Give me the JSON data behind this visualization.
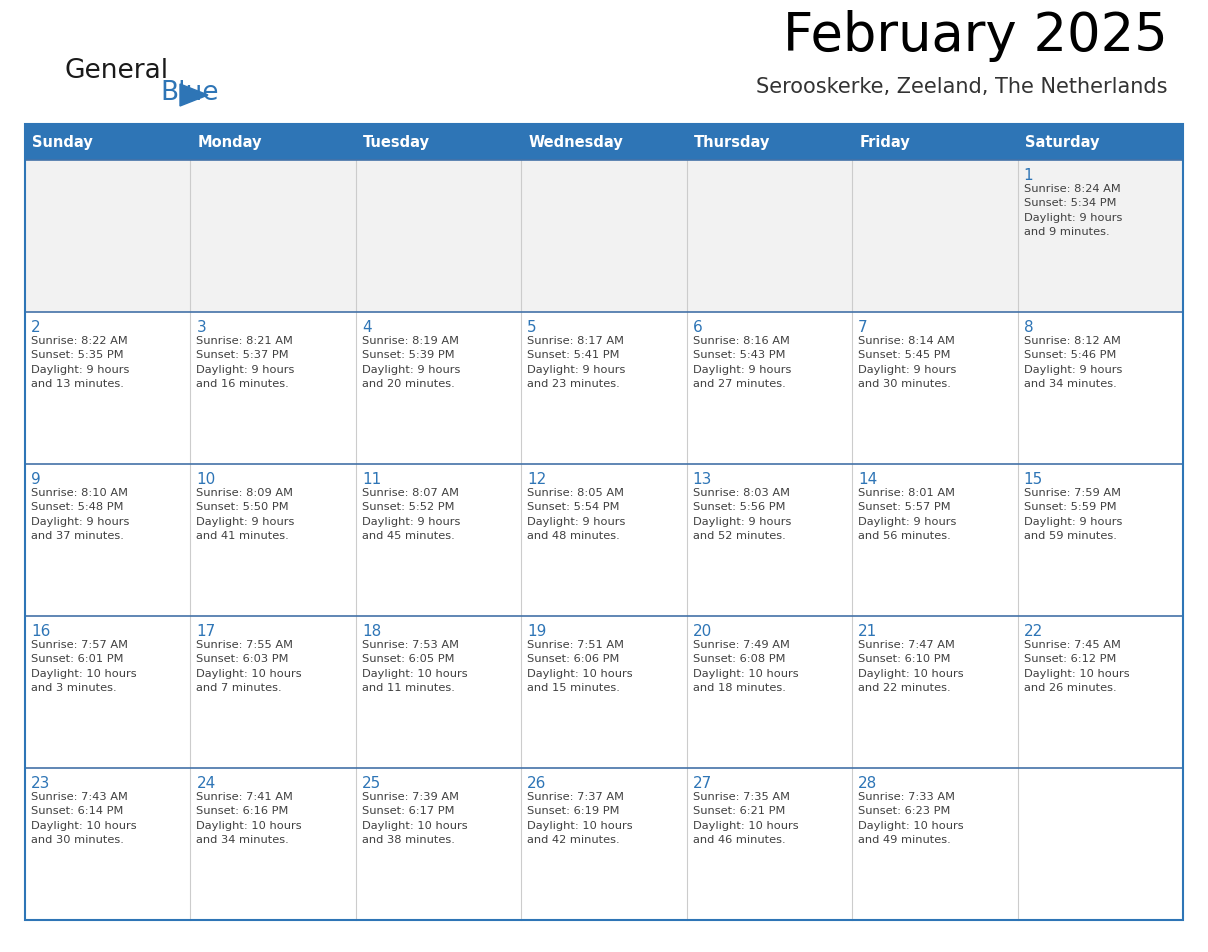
{
  "title": "February 2025",
  "subtitle": "Serooskerke, Zeeland, The Netherlands",
  "header_bg": "#2E75B6",
  "header_text_color": "#FFFFFF",
  "cell_bg_white": "#FFFFFF",
  "cell_bg_gray": "#F2F2F2",
  "border_color": "#2E75B6",
  "row_line_color": "#4472A8",
  "day_headers": [
    "Sunday",
    "Monday",
    "Tuesday",
    "Wednesday",
    "Thursday",
    "Friday",
    "Saturday"
  ],
  "title_color": "#000000",
  "subtitle_color": "#333333",
  "day_number_color": "#2E75B6",
  "cell_text_color": "#404040",
  "logo_general_color": "#1a1a1a",
  "logo_blue_color": "#2E75B6",
  "weeks": [
    [
      {
        "day": null,
        "info": ""
      },
      {
        "day": null,
        "info": ""
      },
      {
        "day": null,
        "info": ""
      },
      {
        "day": null,
        "info": ""
      },
      {
        "day": null,
        "info": ""
      },
      {
        "day": null,
        "info": ""
      },
      {
        "day": 1,
        "info": "Sunrise: 8:24 AM\nSunset: 5:34 PM\nDaylight: 9 hours\nand 9 minutes."
      }
    ],
    [
      {
        "day": 2,
        "info": "Sunrise: 8:22 AM\nSunset: 5:35 PM\nDaylight: 9 hours\nand 13 minutes."
      },
      {
        "day": 3,
        "info": "Sunrise: 8:21 AM\nSunset: 5:37 PM\nDaylight: 9 hours\nand 16 minutes."
      },
      {
        "day": 4,
        "info": "Sunrise: 8:19 AM\nSunset: 5:39 PM\nDaylight: 9 hours\nand 20 minutes."
      },
      {
        "day": 5,
        "info": "Sunrise: 8:17 AM\nSunset: 5:41 PM\nDaylight: 9 hours\nand 23 minutes."
      },
      {
        "day": 6,
        "info": "Sunrise: 8:16 AM\nSunset: 5:43 PM\nDaylight: 9 hours\nand 27 minutes."
      },
      {
        "day": 7,
        "info": "Sunrise: 8:14 AM\nSunset: 5:45 PM\nDaylight: 9 hours\nand 30 minutes."
      },
      {
        "day": 8,
        "info": "Sunrise: 8:12 AM\nSunset: 5:46 PM\nDaylight: 9 hours\nand 34 minutes."
      }
    ],
    [
      {
        "day": 9,
        "info": "Sunrise: 8:10 AM\nSunset: 5:48 PM\nDaylight: 9 hours\nand 37 minutes."
      },
      {
        "day": 10,
        "info": "Sunrise: 8:09 AM\nSunset: 5:50 PM\nDaylight: 9 hours\nand 41 minutes."
      },
      {
        "day": 11,
        "info": "Sunrise: 8:07 AM\nSunset: 5:52 PM\nDaylight: 9 hours\nand 45 minutes."
      },
      {
        "day": 12,
        "info": "Sunrise: 8:05 AM\nSunset: 5:54 PM\nDaylight: 9 hours\nand 48 minutes."
      },
      {
        "day": 13,
        "info": "Sunrise: 8:03 AM\nSunset: 5:56 PM\nDaylight: 9 hours\nand 52 minutes."
      },
      {
        "day": 14,
        "info": "Sunrise: 8:01 AM\nSunset: 5:57 PM\nDaylight: 9 hours\nand 56 minutes."
      },
      {
        "day": 15,
        "info": "Sunrise: 7:59 AM\nSunset: 5:59 PM\nDaylight: 9 hours\nand 59 minutes."
      }
    ],
    [
      {
        "day": 16,
        "info": "Sunrise: 7:57 AM\nSunset: 6:01 PM\nDaylight: 10 hours\nand 3 minutes."
      },
      {
        "day": 17,
        "info": "Sunrise: 7:55 AM\nSunset: 6:03 PM\nDaylight: 10 hours\nand 7 minutes."
      },
      {
        "day": 18,
        "info": "Sunrise: 7:53 AM\nSunset: 6:05 PM\nDaylight: 10 hours\nand 11 minutes."
      },
      {
        "day": 19,
        "info": "Sunrise: 7:51 AM\nSunset: 6:06 PM\nDaylight: 10 hours\nand 15 minutes."
      },
      {
        "day": 20,
        "info": "Sunrise: 7:49 AM\nSunset: 6:08 PM\nDaylight: 10 hours\nand 18 minutes."
      },
      {
        "day": 21,
        "info": "Sunrise: 7:47 AM\nSunset: 6:10 PM\nDaylight: 10 hours\nand 22 minutes."
      },
      {
        "day": 22,
        "info": "Sunrise: 7:45 AM\nSunset: 6:12 PM\nDaylight: 10 hours\nand 26 minutes."
      }
    ],
    [
      {
        "day": 23,
        "info": "Sunrise: 7:43 AM\nSunset: 6:14 PM\nDaylight: 10 hours\nand 30 minutes."
      },
      {
        "day": 24,
        "info": "Sunrise: 7:41 AM\nSunset: 6:16 PM\nDaylight: 10 hours\nand 34 minutes."
      },
      {
        "day": 25,
        "info": "Sunrise: 7:39 AM\nSunset: 6:17 PM\nDaylight: 10 hours\nand 38 minutes."
      },
      {
        "day": 26,
        "info": "Sunrise: 7:37 AM\nSunset: 6:19 PM\nDaylight: 10 hours\nand 42 minutes."
      },
      {
        "day": 27,
        "info": "Sunrise: 7:35 AM\nSunset: 6:21 PM\nDaylight: 10 hours\nand 46 minutes."
      },
      {
        "day": 28,
        "info": "Sunrise: 7:33 AM\nSunset: 6:23 PM\nDaylight: 10 hours\nand 49 minutes."
      },
      {
        "day": null,
        "info": ""
      }
    ]
  ]
}
